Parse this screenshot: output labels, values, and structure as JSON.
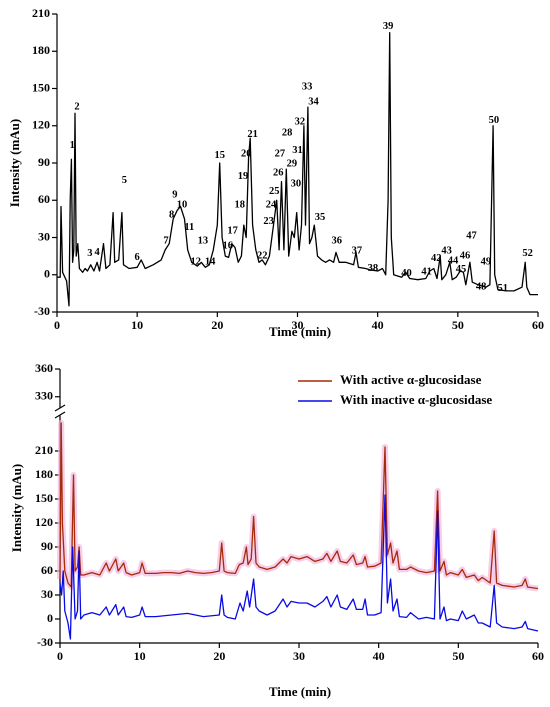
{
  "chart_data": [
    {
      "type": "line",
      "xlabel": "Time (min)",
      "ylabel": "Intensity (mAu)",
      "color": "#000000",
      "xlim": [
        0,
        60
      ],
      "xticks": [
        0,
        10,
        20,
        30,
        40,
        50,
        60
      ],
      "ylim": [
        -30,
        210
      ],
      "yticks": [
        -30,
        0,
        30,
        60,
        90,
        120,
        150,
        180,
        210
      ],
      "x": [
        0,
        0.4,
        0.5,
        0.7,
        1.2,
        1.5,
        1.65,
        1.8,
        1.95,
        2.1,
        2.25,
        2.4,
        2.6,
        2.8,
        3.2,
        3.5,
        3.8,
        4.2,
        4.6,
        5.0,
        5.3,
        5.8,
        6.1,
        6.6,
        7.0,
        7.2,
        7.7,
        8.1,
        8.3,
        9,
        10,
        10.5,
        11,
        12,
        13,
        13.5,
        14,
        14.5,
        15,
        15.4,
        15.9,
        16.3,
        16.8,
        17.5,
        18,
        18.5,
        19,
        19.5,
        20,
        20.3,
        20.6,
        21,
        21.4,
        21.8,
        22.2,
        22.6,
        23,
        23.3,
        23.6,
        23.9,
        24.1,
        24.4,
        24.8,
        25.2,
        25.6,
        26,
        26.5,
        27,
        27.4,
        27.7,
        28,
        28.3,
        28.6,
        28.9,
        29.3,
        29.6,
        29.9,
        30.2,
        30.5,
        30.8,
        31.0,
        31.3,
        31.5,
        31.8,
        32.1,
        32.5,
        33,
        33.5,
        34,
        34.5,
        34.8,
        35.2,
        36,
        37,
        37.3,
        37.6,
        38.5,
        39,
        40,
        40.6,
        41,
        41.3,
        41.5,
        41.7,
        42,
        43,
        43.5,
        44,
        45,
        46,
        46.5,
        47,
        47.4,
        47.8,
        48,
        48.5,
        49,
        49.3,
        49.8,
        50.3,
        50.7,
        51,
        51.5,
        51.8,
        52.5,
        53,
        53.5,
        54,
        54.4,
        54.6,
        55,
        56,
        57,
        58,
        58.4,
        58.6,
        59,
        60
      ],
      "values": [
        -2,
        -2,
        55,
        2,
        -5,
        -25,
        60,
        93,
        10,
        20,
        130,
        15,
        25,
        5,
        2,
        5,
        3,
        8,
        3,
        10,
        3,
        25,
        5,
        8,
        50,
        10,
        12,
        50,
        8,
        5,
        6,
        12,
        5,
        8,
        12,
        20,
        25,
        45,
        52,
        55,
        45,
        20,
        10,
        7,
        10,
        6,
        8,
        20,
        40,
        90,
        30,
        15,
        14,
        25,
        22,
        10,
        15,
        40,
        30,
        95,
        110,
        40,
        20,
        10,
        12,
        8,
        15,
        40,
        60,
        20,
        75,
        20,
        85,
        15,
        35,
        30,
        50,
        20,
        40,
        120,
        40,
        135,
        25,
        30,
        40,
        15,
        12,
        10,
        12,
        10,
        18,
        10,
        10,
        8,
        18,
        6,
        5,
        4,
        3,
        5,
        0,
        60,
        195,
        30,
        0,
        -2,
        2,
        -3,
        -4,
        -3,
        3,
        5,
        -3,
        15,
        -4,
        0,
        10,
        -4,
        -2,
        3,
        2,
        -8,
        10,
        -6,
        -8,
        -9,
        -10,
        -8,
        120,
        0,
        -12,
        -13,
        -13,
        -10,
        10,
        -10,
        -16,
        -16
      ],
      "annotations": [
        {
          "text": "1",
          "x": 1.9,
          "y": 104
        },
        {
          "text": "2",
          "x": 2.5,
          "y": 135
        },
        {
          "text": "3",
          "x": 4.1,
          "y": 17
        },
        {
          "text": "4",
          "x": 5.0,
          "y": 18
        },
        {
          "text": "5",
          "x": 8.4,
          "y": 76
        },
        {
          "text": "6",
          "x": 10.0,
          "y": 14
        },
        {
          "text": "7",
          "x": 13.6,
          "y": 27
        },
        {
          "text": "8",
          "x": 14.3,
          "y": 48
        },
        {
          "text": "9",
          "x": 14.7,
          "y": 64
        },
        {
          "text": "10",
          "x": 15.6,
          "y": 56
        },
        {
          "text": "11",
          "x": 16.5,
          "y": 38
        },
        {
          "text": "12",
          "x": 17.3,
          "y": 10
        },
        {
          "text": "13",
          "x": 18.2,
          "y": 27
        },
        {
          "text": "14",
          "x": 19.1,
          "y": 10
        },
        {
          "text": "15",
          "x": 20.3,
          "y": 96
        },
        {
          "text": "16",
          "x": 21.3,
          "y": 23
        },
        {
          "text": "17",
          "x": 21.9,
          "y": 35
        },
        {
          "text": "18",
          "x": 22.8,
          "y": 56
        },
        {
          "text": "19",
          "x": 23.2,
          "y": 79
        },
        {
          "text": "20",
          "x": 23.6,
          "y": 97
        },
        {
          "text": "21",
          "x": 24.4,
          "y": 113
        },
        {
          "text": "22",
          "x": 25.6,
          "y": 15
        },
        {
          "text": "23",
          "x": 26.4,
          "y": 43
        },
        {
          "text": "24",
          "x": 26.7,
          "y": 56
        },
        {
          "text": "25",
          "x": 27.1,
          "y": 67
        },
        {
          "text": "26",
          "x": 27.6,
          "y": 82
        },
        {
          "text": "27",
          "x": 27.8,
          "y": 97
        },
        {
          "text": "28",
          "x": 28.7,
          "y": 114
        },
        {
          "text": "29",
          "x": 29.3,
          "y": 89
        },
        {
          "text": "30",
          "x": 29.8,
          "y": 73
        },
        {
          "text": "31",
          "x": 30.0,
          "y": 100
        },
        {
          "text": "32",
          "x": 30.3,
          "y": 123
        },
        {
          "text": "33",
          "x": 31.2,
          "y": 151
        },
        {
          "text": "34",
          "x": 32.0,
          "y": 139
        },
        {
          "text": "35",
          "x": 32.8,
          "y": 46
        },
        {
          "text": "36",
          "x": 34.9,
          "y": 27
        },
        {
          "text": "37",
          "x": 37.4,
          "y": 19
        },
        {
          "text": "38",
          "x": 39.4,
          "y": 5
        },
        {
          "text": "39",
          "x": 41.3,
          "y": 200
        },
        {
          "text": "40",
          "x": 43.6,
          "y": 1
        },
        {
          "text": "41",
          "x": 46.1,
          "y": 2
        },
        {
          "text": "42",
          "x": 47.3,
          "y": 13
        },
        {
          "text": "43",
          "x": 48.6,
          "y": 19
        },
        {
          "text": "44",
          "x": 49.4,
          "y": 11
        },
        {
          "text": "45",
          "x": 50.4,
          "y": 4
        },
        {
          "text": "46",
          "x": 50.9,
          "y": 15
        },
        {
          "text": "47",
          "x": 51.7,
          "y": 31
        },
        {
          "text": "48",
          "x": 52.9,
          "y": -10
        },
        {
          "text": "49",
          "x": 53.5,
          "y": 10
        },
        {
          "text": "50",
          "x": 54.5,
          "y": 124
        },
        {
          "text": "51",
          "x": 55.6,
          "y": -11
        },
        {
          "text": "52",
          "x": 58.7,
          "y": 17
        }
      ]
    },
    {
      "type": "line",
      "xlabel": "Time (min)",
      "ylabel": "Intensity (mAu)",
      "xlim": [
        0,
        60
      ],
      "xticks": [
        0,
        10,
        20,
        30,
        40,
        50,
        60
      ],
      "ylim": [
        -30,
        360
      ],
      "ybreak": [
        250,
        320
      ],
      "yticks": [
        -30,
        0,
        30,
        60,
        90,
        120,
        150,
        180,
        210,
        330,
        360
      ],
      "legend": "upper right",
      "band_color": "#f4b8e0",
      "series": [
        {
          "name": "With active α-glucosidase",
          "color": "#a52a0a",
          "x": [
            0,
            0.15,
            0.3,
            0.6,
            1.0,
            1.4,
            1.7,
            1.9,
            2.2,
            2.4,
            2.6,
            3,
            4,
            5,
            5.8,
            6.2,
            7,
            7.3,
            8,
            8.3,
            9,
            10,
            10.3,
            10.7,
            12,
            13,
            14,
            15,
            16,
            17,
            18,
            19,
            20,
            20.3,
            20.6,
            21,
            22,
            22.5,
            23,
            23.4,
            23.6,
            24,
            24.3,
            24.6,
            25,
            26,
            27,
            28,
            28.5,
            29,
            30,
            31,
            32,
            33,
            33.5,
            34,
            34.8,
            35.2,
            36,
            36.8,
            37.2,
            38,
            38.3,
            38.6,
            39.5,
            40.3,
            40.8,
            41.1,
            41.5,
            41.8,
            42.3,
            42.6,
            43.5,
            44,
            45,
            46,
            47,
            47.4,
            47.7,
            48.2,
            48.5,
            49,
            50,
            50.5,
            51,
            52,
            52.5,
            53,
            54,
            54.5,
            54.8,
            55.5,
            57,
            58,
            58.4,
            58.7,
            60
          ],
          "values": [
            50,
            245,
            120,
            60,
            45,
            40,
            180,
            60,
            65,
            90,
            55,
            55,
            58,
            55,
            70,
            60,
            75,
            60,
            70,
            58,
            55,
            58,
            70,
            57,
            57,
            58,
            58,
            57,
            60,
            58,
            57,
            58,
            60,
            95,
            60,
            58,
            57,
            68,
            70,
            90,
            68,
            75,
            128,
            70,
            65,
            62,
            65,
            75,
            70,
            78,
            75,
            78,
            72,
            75,
            82,
            72,
            85,
            72,
            70,
            80,
            68,
            70,
            78,
            65,
            66,
            70,
            215,
            80,
            95,
            70,
            85,
            62,
            62,
            65,
            60,
            58,
            60,
            160,
            60,
            72,
            55,
            58,
            55,
            62,
            52,
            55,
            48,
            52,
            45,
            110,
            45,
            42,
            40,
            42,
            50,
            40,
            38
          ]
        },
        {
          "name": "With inactive α-glucosidase",
          "color": "#0a0ae6",
          "x": [
            0,
            0.2,
            0.4,
            0.6,
            1.0,
            1.3,
            1.6,
            1.9,
            2.2,
            2.4,
            2.6,
            3,
            4,
            5,
            5.8,
            6.2,
            7,
            7.3,
            8,
            8.3,
            9,
            10,
            10.3,
            10.7,
            12,
            14,
            16,
            18,
            20,
            20.3,
            20.6,
            21,
            22,
            22.6,
            23,
            23.5,
            23.8,
            24.3,
            24.6,
            25,
            26,
            27,
            28,
            28.5,
            29,
            30,
            31,
            32,
            33,
            33.5,
            34,
            34.8,
            35.2,
            36,
            36.8,
            37.2,
            38,
            38.3,
            38.6,
            39.5,
            40.3,
            40.8,
            41.1,
            41.5,
            41.8,
            42.3,
            42.6,
            43.5,
            44,
            45,
            46,
            47,
            47.4,
            47.7,
            48.2,
            48.5,
            49,
            50,
            50.5,
            51,
            52,
            52.5,
            53,
            54,
            54.5,
            54.8,
            55.5,
            57,
            58,
            58.4,
            58.7,
            60
          ],
          "values": [
            45,
            30,
            60,
            10,
            -5,
            -25,
            90,
            0,
            10,
            85,
            0,
            5,
            8,
            5,
            15,
            5,
            18,
            5,
            15,
            3,
            2,
            5,
            15,
            3,
            3,
            5,
            7,
            3,
            5,
            30,
            5,
            2,
            0,
            20,
            10,
            35,
            15,
            50,
            15,
            10,
            5,
            10,
            25,
            15,
            22,
            20,
            20,
            15,
            22,
            28,
            15,
            30,
            15,
            12,
            25,
            12,
            12,
            25,
            5,
            5,
            8,
            155,
            20,
            50,
            10,
            25,
            3,
            2,
            8,
            0,
            2,
            0,
            135,
            0,
            15,
            -2,
            0,
            -2,
            10,
            0,
            5,
            -5,
            -5,
            -10,
            42,
            -5,
            -10,
            -12,
            -10,
            -3,
            -12,
            -15
          ]
        }
      ]
    }
  ]
}
